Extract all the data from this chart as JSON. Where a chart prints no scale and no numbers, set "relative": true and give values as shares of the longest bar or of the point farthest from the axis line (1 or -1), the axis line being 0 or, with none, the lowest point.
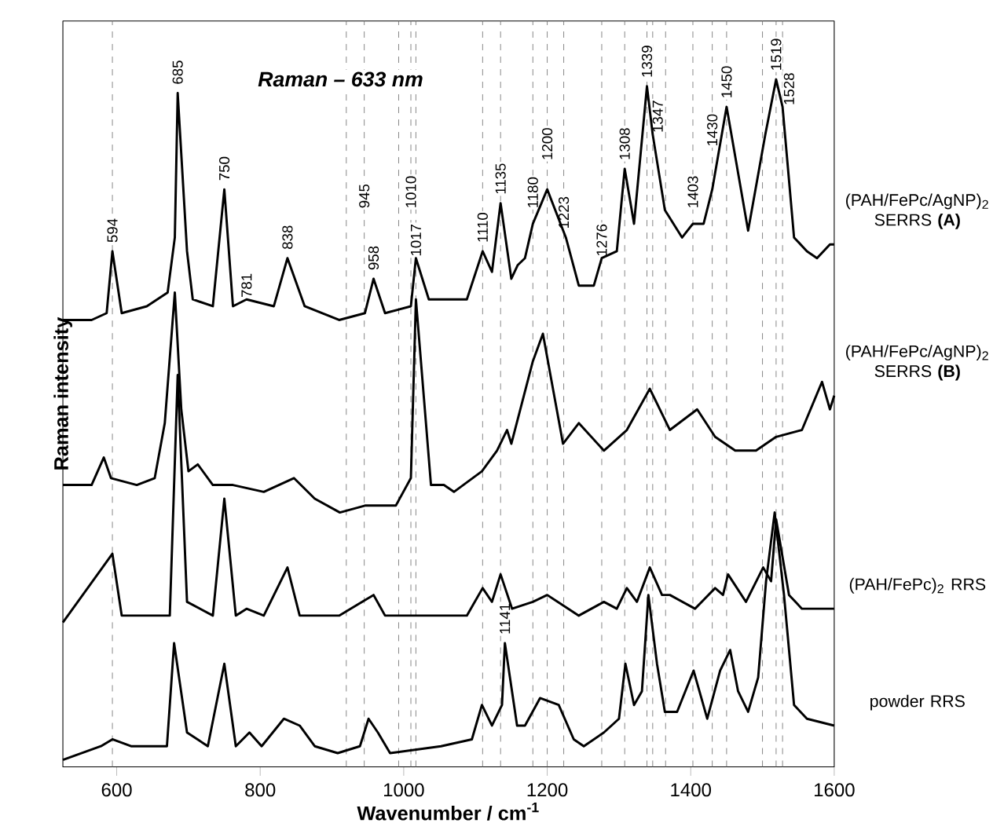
{
  "chart_data": {
    "type": "line",
    "title": "Raman – 633 nm",
    "xlabel": "Wavenumber / cm$^{-1}$",
    "ylabel": "Raman intensity",
    "relative": true,
    "tick_labels": "x",
    "xlim": [
      525,
      1600
    ],
    "xticks": [
      600,
      800,
      1000,
      1200,
      1400,
      1600
    ],
    "series": [
      {
        "name": "(PAH/FePc/AgNP)$_{2}$ SERRS **(A)**",
        "color": "#000000",
        "x": [
          525,
          565,
          586,
          594,
          607,
          642,
          671,
          681,
          685,
          698,
          706,
          734,
          750,
          762,
          781,
          819,
          838,
          862,
          910,
          946,
          958,
          974,
          1010,
          1017,
          1035,
          1088,
          1110,
          1123,
          1135,
          1150,
          1159,
          1169,
          1180,
          1200,
          1226,
          1244,
          1265,
          1276,
          1297,
          1308,
          1321,
          1339,
          1347,
          1364,
          1388,
          1403,
          1418,
          1430,
          1450,
          1480,
          1504,
          1519,
          1528,
          1544,
          1562,
          1576,
          1594,
          1600
        ],
        "values": [
          0.65,
          0.65,
          0.66,
          0.75,
          0.66,
          0.67,
          0.69,
          0.77,
          0.98,
          0.75,
          0.68,
          0.67,
          0.84,
          0.67,
          0.68,
          0.67,
          0.74,
          0.67,
          0.65,
          0.66,
          0.71,
          0.66,
          0.67,
          0.74,
          0.68,
          0.68,
          0.75,
          0.72,
          0.82,
          0.71,
          0.73,
          0.74,
          0.79,
          0.84,
          0.77,
          0.7,
          0.7,
          0.74,
          0.75,
          0.87,
          0.79,
          0.99,
          0.92,
          0.81,
          0.77,
          0.79,
          0.79,
          0.84,
          0.96,
          0.78,
          0.92,
          1.0,
          0.96,
          0.77,
          0.75,
          0.74,
          0.76,
          0.76
        ]
      },
      {
        "name": "(PAH/FePc/AgNP)$_{2}$ SERRS **(B)**",
        "color": "#000000",
        "x": [
          525,
          565,
          582,
          592,
          628,
          653,
          667,
          681,
          690,
          700,
          713,
          734,
          762,
          805,
          847,
          876,
          911,
          946,
          989,
          1010,
          1017,
          1038,
          1056,
          1070,
          1109,
          1130,
          1144,
          1150,
          1180,
          1194,
          1222,
          1244,
          1279,
          1311,
          1343,
          1371,
          1409,
          1434,
          1462,
          1491,
          1519,
          1555,
          1583,
          1594,
          1600
        ],
        "values": [
          0.41,
          0.41,
          0.45,
          0.42,
          0.41,
          0.42,
          0.5,
          0.69,
          0.52,
          0.43,
          0.44,
          0.41,
          0.41,
          0.4,
          0.42,
          0.39,
          0.37,
          0.38,
          0.38,
          0.42,
          0.68,
          0.41,
          0.41,
          0.4,
          0.43,
          0.46,
          0.49,
          0.47,
          0.59,
          0.63,
          0.47,
          0.5,
          0.46,
          0.49,
          0.55,
          0.49,
          0.52,
          0.48,
          0.46,
          0.46,
          0.48,
          0.49,
          0.56,
          0.52,
          0.54
        ]
      },
      {
        "name": "(PAH/FePc)$_{2}$ RRS",
        "color": "#000000",
        "x": [
          525,
          594,
          607,
          674,
          685,
          698,
          734,
          750,
          766,
          781,
          805,
          838,
          855,
          910,
          958,
          974,
          1014,
          1088,
          1110,
          1123,
          1135,
          1151,
          1180,
          1200,
          1244,
          1279,
          1297,
          1311,
          1325,
          1343,
          1360,
          1371,
          1406,
          1434,
          1445,
          1452,
          1477,
          1501,
          1512,
          1519,
          1537,
          1555,
          1600
        ],
        "values": [
          0.21,
          0.31,
          0.22,
          0.22,
          0.57,
          0.24,
          0.22,
          0.39,
          0.22,
          0.23,
          0.22,
          0.29,
          0.22,
          0.22,
          0.25,
          0.22,
          0.22,
          0.22,
          0.26,
          0.24,
          0.28,
          0.23,
          0.24,
          0.25,
          0.22,
          0.24,
          0.23,
          0.26,
          0.24,
          0.29,
          0.25,
          0.25,
          0.23,
          0.26,
          0.25,
          0.28,
          0.24,
          0.29,
          0.27,
          0.36,
          0.25,
          0.23,
          0.23
        ]
      },
      {
        "name": "powder RRS",
        "color": "#000000",
        "x": [
          525,
          578,
          594,
          620,
          670,
          680,
          698,
          727,
          750,
          766,
          785,
          802,
          833,
          855,
          876,
          908,
          939,
          951,
          964,
          981,
          1052,
          1095,
          1109,
          1123,
          1137,
          1141,
          1158,
          1169,
          1190,
          1216,
          1237,
          1251,
          1279,
          1300,
          1309,
          1321,
          1332,
          1341,
          1353,
          1364,
          1381,
          1404,
          1423,
          1441,
          1455,
          1466,
          1480,
          1494,
          1505,
          1517,
          1530,
          1544,
          1562,
          1600
        ],
        "values": [
          0.01,
          0.03,
          0.04,
          0.03,
          0.03,
          0.18,
          0.05,
          0.03,
          0.15,
          0.03,
          0.05,
          0.03,
          0.07,
          0.06,
          0.03,
          0.02,
          0.03,
          0.07,
          0.05,
          0.02,
          0.03,
          0.04,
          0.09,
          0.06,
          0.09,
          0.18,
          0.06,
          0.06,
          0.1,
          0.09,
          0.04,
          0.03,
          0.05,
          0.07,
          0.15,
          0.09,
          0.11,
          0.25,
          0.15,
          0.08,
          0.08,
          0.14,
          0.07,
          0.14,
          0.17,
          0.11,
          0.08,
          0.13,
          0.27,
          0.37,
          0.25,
          0.09,
          0.07,
          0.06
        ]
      }
    ],
    "annotations": [
      {
        "text": "594",
        "x": 594,
        "y": 0.76
      },
      {
        "text": "685",
        "x": 685,
        "y": 0.99
      },
      {
        "text": "750",
        "x": 750,
        "y": 0.85
      },
      {
        "text": "781",
        "x": 781,
        "y": 0.68
      },
      {
        "text": "838",
        "x": 838,
        "y": 0.75
      },
      {
        "text": "945",
        "x": 945,
        "y": 0.81
      },
      {
        "text": "958",
        "x": 958,
        "y": 0.72
      },
      {
        "text": "1010",
        "x": 1010,
        "y": 0.81
      },
      {
        "text": "1017",
        "x": 1017,
        "y": 0.74
      },
      {
        "text": "1110",
        "x": 1110,
        "y": 0.76
      },
      {
        "text": "1135",
        "x": 1135,
        "y": 0.83
      },
      {
        "text": "1180",
        "x": 1180,
        "y": 0.81
      },
      {
        "text": "1200",
        "x": 1200,
        "y": 0.88
      },
      {
        "text": "1223",
        "x": 1223,
        "y": 0.78
      },
      {
        "text": "1276",
        "x": 1276,
        "y": 0.74
      },
      {
        "text": "1308",
        "x": 1308,
        "y": 0.88
      },
      {
        "text": "1339",
        "x": 1339,
        "y": 1.0
      },
      {
        "text": "1347",
        "x": 1354,
        "y": 0.92
      },
      {
        "text": "1403",
        "x": 1403,
        "y": 0.81
      },
      {
        "text": "1430",
        "x": 1430,
        "y": 0.9
      },
      {
        "text": "1450",
        "x": 1450,
        "y": 0.97
      },
      {
        "text": "1519",
        "x": 1519,
        "y": 1.01
      },
      {
        "text": "1528",
        "x": 1537,
        "y": 0.96
      },
      {
        "text": "1141",
        "x": 1141,
        "y": 0.19
      }
    ],
    "ref_lines": [
      {
        "axis": "x",
        "value": 594,
        "color": "#808080",
        "line_style": "dashed"
      },
      {
        "axis": "x",
        "value": 920,
        "color": "#808080",
        "line_style": "dashed"
      },
      {
        "axis": "x",
        "value": 945,
        "color": "#808080",
        "line_style": "dashed"
      },
      {
        "axis": "x",
        "value": 993,
        "color": "#808080",
        "line_style": "dashed"
      },
      {
        "axis": "x",
        "value": 1010,
        "color": "#808080",
        "line_style": "dashed"
      },
      {
        "axis": "x",
        "value": 1017,
        "color": "#808080",
        "line_style": "dashed"
      },
      {
        "axis": "x",
        "value": 1110,
        "color": "#808080",
        "line_style": "dashed"
      },
      {
        "axis": "x",
        "value": 1135,
        "color": "#808080",
        "line_style": "dashed"
      },
      {
        "axis": "x",
        "value": 1180,
        "color": "#808080",
        "line_style": "dashed"
      },
      {
        "axis": "x",
        "value": 1200,
        "color": "#808080",
        "line_style": "dashed"
      },
      {
        "axis": "x",
        "value": 1223,
        "color": "#808080",
        "line_style": "dashed"
      },
      {
        "axis": "x",
        "value": 1276,
        "color": "#808080",
        "line_style": "dashed"
      },
      {
        "axis": "x",
        "value": 1308,
        "color": "#808080",
        "line_style": "dashed"
      },
      {
        "axis": "x",
        "value": 1339,
        "color": "#808080",
        "line_style": "dashed"
      },
      {
        "axis": "x",
        "value": 1347,
        "color": "#808080",
        "line_style": "dashed"
      },
      {
        "axis": "x",
        "value": 1365,
        "color": "#808080",
        "line_style": "dashed"
      },
      {
        "axis": "x",
        "value": 1403,
        "color": "#808080",
        "line_style": "dashed"
      },
      {
        "axis": "x",
        "value": 1430,
        "color": "#808080",
        "line_style": "dashed"
      },
      {
        "axis": "x",
        "value": 1450,
        "color": "#808080",
        "line_style": "dashed"
      },
      {
        "axis": "x",
        "value": 1500,
        "color": "#808080",
        "line_style": "dashed"
      },
      {
        "axis": "x",
        "value": 1519,
        "color": "#808080",
        "line_style": "dashed"
      },
      {
        "axis": "x",
        "value": 1528,
        "color": "#808080",
        "line_style": "dashed"
      }
    ]
  }
}
